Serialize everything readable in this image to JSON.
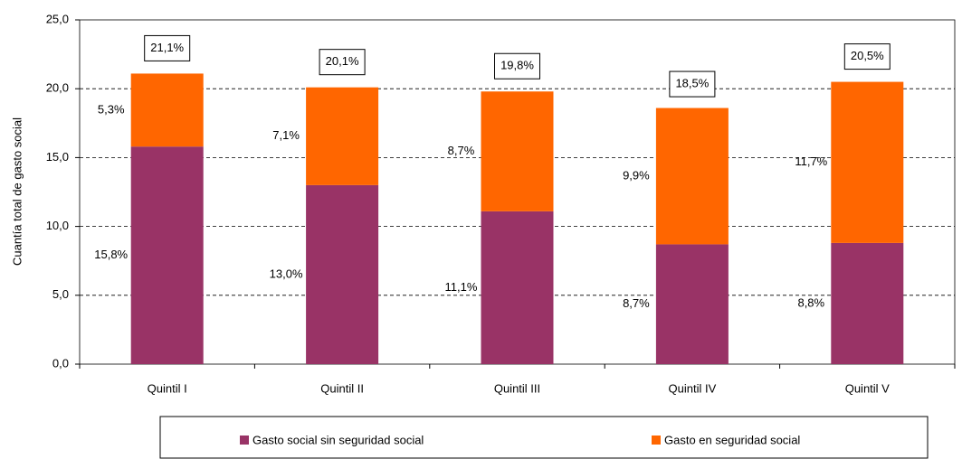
{
  "chart_data": {
    "type": "stacked_bar",
    "y_label": "Cuantía total de gasto social",
    "categories": [
      "Quintil I",
      "Quintil II",
      "Quintil III",
      "Quintil IV",
      "Quintil V"
    ],
    "series": [
      {
        "name": "Gasto social sin seguridad social",
        "color": "#993366",
        "values": [
          15.8,
          13.0,
          11.1,
          8.7,
          8.8
        ],
        "value_labels": [
          "15,8%",
          "13,0%",
          "11,1%",
          "8,7%",
          "8,8%"
        ]
      },
      {
        "name": "Gasto en seguridad social",
        "color": "#ff6600",
        "values": [
          5.3,
          7.1,
          8.7,
          9.9,
          11.7
        ],
        "value_labels": [
          "5,3%",
          "7,1%",
          "8,7%",
          "9,9%",
          "11,7%"
        ]
      }
    ],
    "totals": [
      21.1,
      20.1,
      19.8,
      18.5,
      20.5
    ],
    "total_labels": [
      "21,1%",
      "20,1%",
      "19,8%",
      "18,5%",
      "20,5%"
    ],
    "ylim": [
      0,
      25
    ],
    "yticks": [
      {
        "value": 0,
        "label": "0,0"
      },
      {
        "value": 5,
        "label": "5,0"
      },
      {
        "value": 10,
        "label": "10,0"
      },
      {
        "value": 15,
        "label": "15,0"
      },
      {
        "value": 20,
        "label": "20,0"
      },
      {
        "value": 25,
        "label": "25,0"
      }
    ],
    "grid": true,
    "legend": "bottom"
  }
}
